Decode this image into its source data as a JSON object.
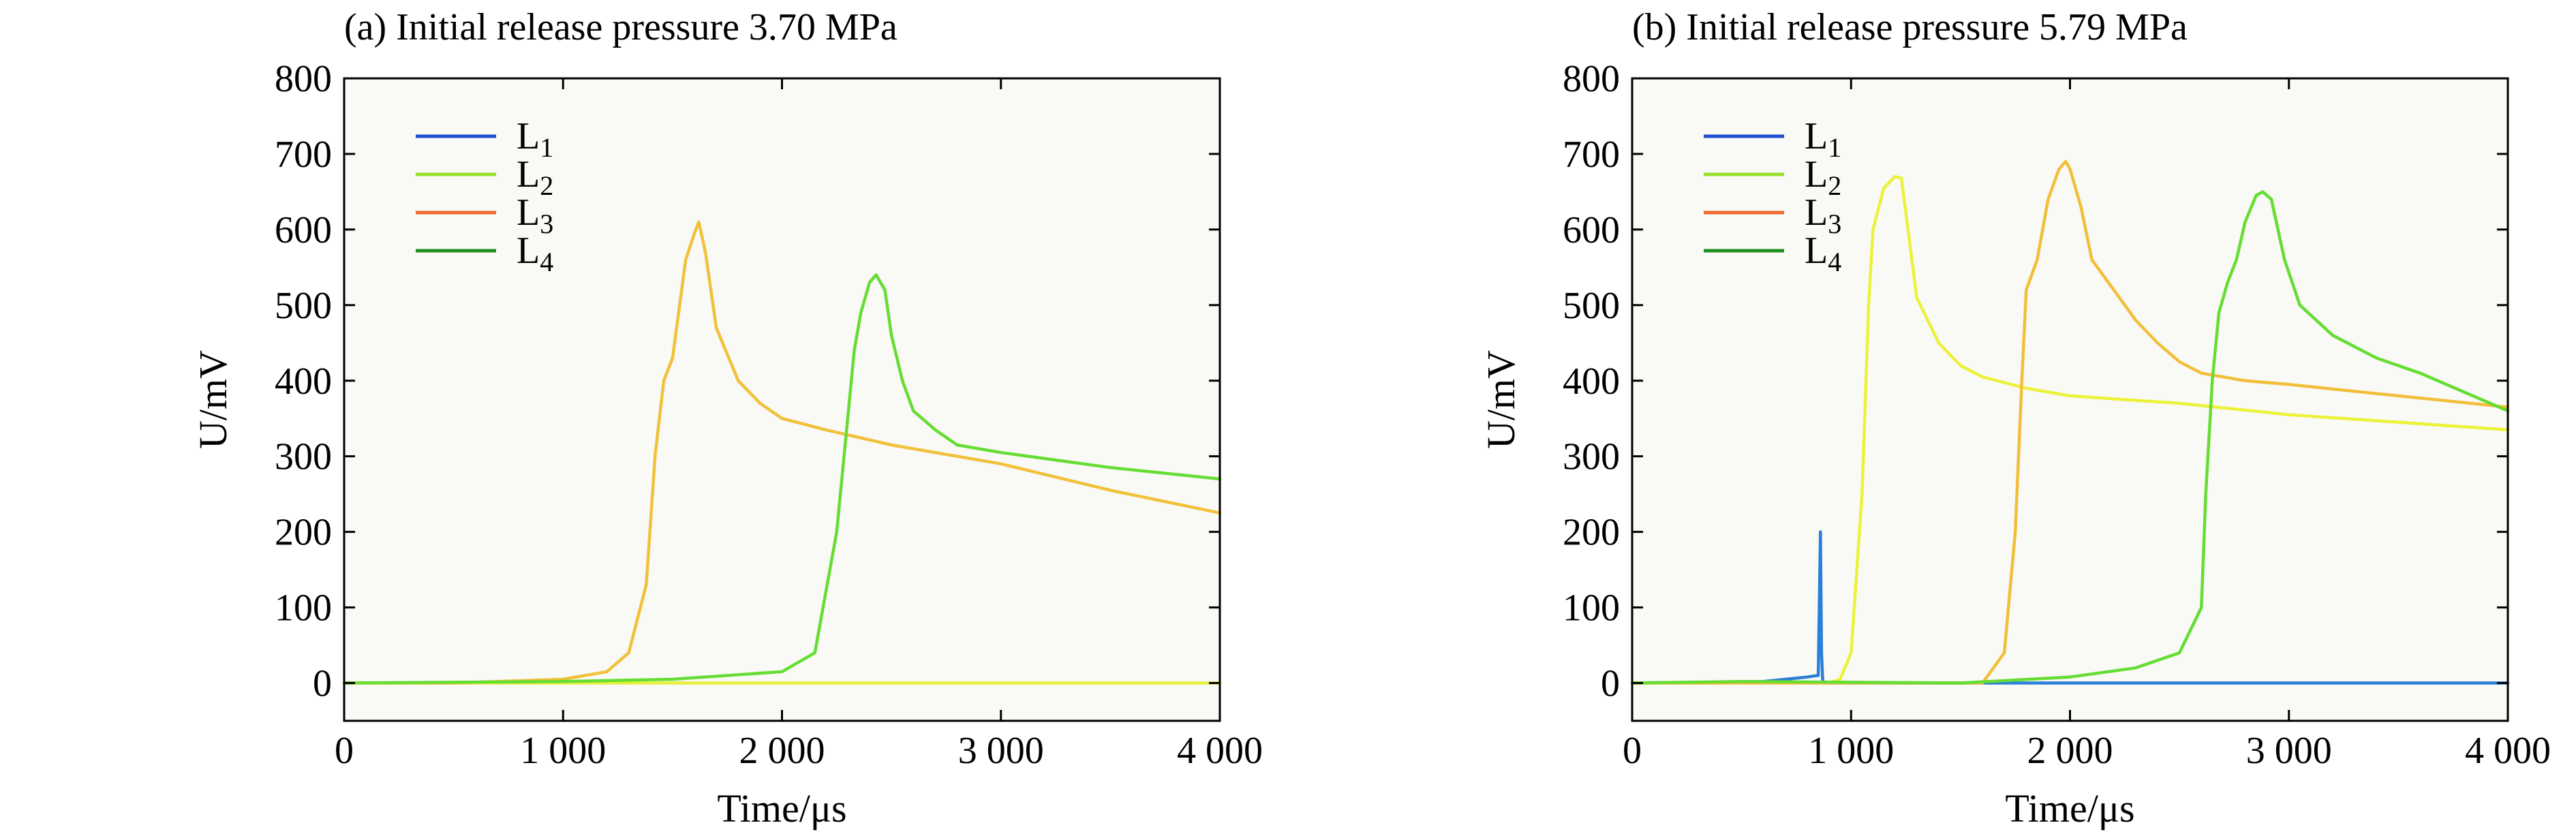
{
  "chart_data": [
    {
      "type": "line",
      "title": "(a) Initial release pressure 3.70 MPa",
      "xlabel": "Time/μs",
      "ylabel": "U/mV",
      "xlim": [
        0,
        4000
      ],
      "ylim": [
        -50,
        800
      ],
      "xticks": [
        0,
        1000,
        2000,
        3000,
        4000
      ],
      "xtick_labels": [
        "0",
        "1 000",
        "2 000",
        "3 000",
        "4 000"
      ],
      "yticks": [
        0,
        100,
        200,
        300,
        400,
        500,
        600,
        700,
        800
      ],
      "ytick_labels": [
        "0",
        "100",
        "200",
        "300",
        "400",
        "500",
        "600",
        "700",
        "800"
      ],
      "grid": false,
      "legend_position": "top-left",
      "legend": [
        {
          "label": "L",
          "sub": "1",
          "color": "#1f4fd0"
        },
        {
          "label": "L",
          "sub": "2",
          "color": "#99e02c"
        },
        {
          "label": "L",
          "sub": "3",
          "color": "#ef6a2b"
        },
        {
          "label": "L",
          "sub": "4",
          "color": "#1f8f1f"
        }
      ],
      "series": [
        {
          "color": "#e8f03a",
          "x": [
            0,
            4000
          ],
          "y": [
            0,
            0
          ]
        },
        {
          "color": "#f2c13a",
          "x": [
            0,
            500,
            1000,
            1200,
            1300,
            1380,
            1420,
            1460,
            1500,
            1560,
            1600,
            1620,
            1650,
            1700,
            1800,
            1900,
            2000,
            2200,
            2500,
            3000,
            3500,
            4000
          ],
          "y": [
            0,
            0,
            5,
            15,
            40,
            130,
            300,
            400,
            430,
            560,
            595,
            610,
            570,
            470,
            400,
            370,
            350,
            335,
            315,
            290,
            255,
            225
          ]
        },
        {
          "color": "#66dd33",
          "x": [
            0,
            1000,
            1500,
            2000,
            2150,
            2250,
            2300,
            2330,
            2360,
            2400,
            2430,
            2470,
            2500,
            2550,
            2600,
            2700,
            2800,
            3000,
            3500,
            4000
          ],
          "y": [
            0,
            2,
            5,
            15,
            40,
            200,
            350,
            440,
            490,
            530,
            540,
            520,
            460,
            400,
            360,
            335,
            315,
            305,
            285,
            270
          ]
        }
      ]
    },
    {
      "type": "line",
      "title": "(b) Initial release pressure 5.79 MPa",
      "xlabel": "Time/μs",
      "ylabel": "U/mV",
      "xlim": [
        0,
        4000
      ],
      "ylim": [
        -50,
        800
      ],
      "xticks": [
        0,
        1000,
        2000,
        3000,
        4000
      ],
      "xtick_labels": [
        "0",
        "1 000",
        "2 000",
        "3 000",
        "4 000"
      ],
      "yticks": [
        0,
        100,
        200,
        300,
        400,
        500,
        600,
        700,
        800
      ],
      "ytick_labels": [
        "0",
        "100",
        "200",
        "300",
        "400",
        "500",
        "600",
        "700",
        "800"
      ],
      "grid": false,
      "legend_position": "top-left",
      "legend": [
        {
          "label": "L",
          "sub": "1",
          "color": "#1f4fd0"
        },
        {
          "label": "L",
          "sub": "2",
          "color": "#99e02c"
        },
        {
          "label": "L",
          "sub": "3",
          "color": "#ef6a2b"
        },
        {
          "label": "L",
          "sub": "4",
          "color": "#1f8f1f"
        }
      ],
      "series": [
        {
          "color": "#2b7fd6",
          "x": [
            0,
            600,
            800,
            850,
            860,
            865,
            870,
            875,
            880,
            900,
            4000
          ],
          "y": [
            0,
            2,
            8,
            10,
            200,
            40,
            5,
            0,
            0,
            0,
            0
          ]
        },
        {
          "color": "#ecf23a",
          "x": [
            0,
            900,
            950,
            1000,
            1050,
            1080,
            1100,
            1150,
            1200,
            1230,
            1260,
            1300,
            1400,
            1500,
            1600,
            1800,
            2000,
            2500,
            3000,
            3500,
            4000
          ],
          "y": [
            0,
            0,
            5,
            40,
            250,
            500,
            600,
            655,
            670,
            668,
            600,
            510,
            450,
            420,
            405,
            390,
            380,
            370,
            355,
            345,
            335
          ]
        },
        {
          "color": "#f2bf3a",
          "x": [
            0,
            1600,
            1700,
            1750,
            1780,
            1800,
            1850,
            1900,
            1950,
            1980,
            2000,
            2050,
            2100,
            2200,
            2300,
            2400,
            2500,
            2600,
            2800,
            3000,
            3500,
            4000
          ],
          "y": [
            0,
            0,
            40,
            200,
            400,
            520,
            560,
            640,
            680,
            690,
            680,
            630,
            560,
            520,
            480,
            450,
            425,
            410,
            400,
            395,
            380,
            365
          ]
        },
        {
          "color": "#66dd33",
          "x": [
            0,
            500,
            1000,
            1500,
            2000,
            2300,
            2500,
            2600,
            2620,
            2650,
            2680,
            2720,
            2760,
            2800,
            2850,
            2880,
            2920,
            2980,
            3050,
            3200,
            3400,
            3600,
            3800,
            4000
          ],
          "y": [
            0,
            2,
            1,
            0,
            8,
            20,
            40,
            100,
            250,
            400,
            490,
            530,
            560,
            610,
            645,
            650,
            640,
            560,
            500,
            460,
            430,
            410,
            385,
            360
          ]
        }
      ]
    }
  ]
}
